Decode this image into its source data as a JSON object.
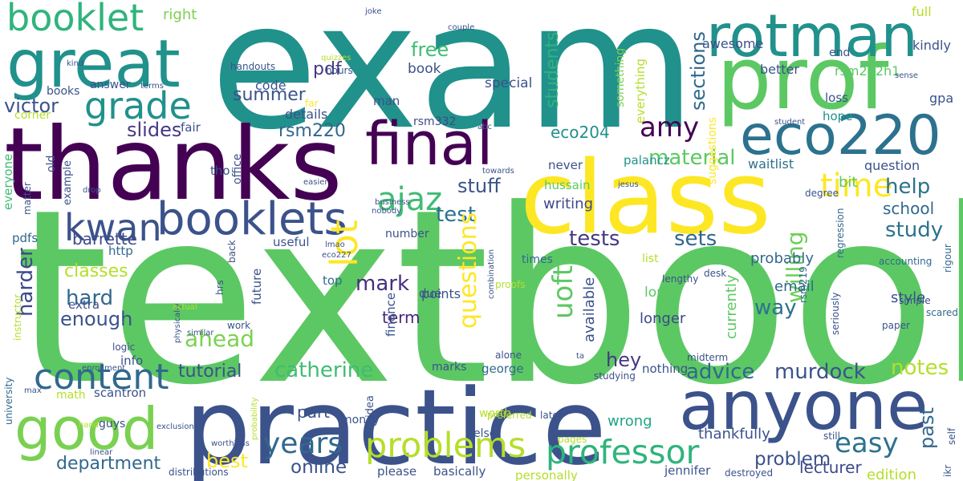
{
  "words": [
    {
      "text": "textbook",
      "color": "#5cc863"
    },
    {
      "text": "exam",
      "color": "#21918c"
    },
    {
      "text": "practice",
      "color": "#3b528b"
    },
    {
      "text": "thanks",
      "color": "#440154"
    },
    {
      "text": "class",
      "color": "#fde725"
    },
    {
      "text": "prof",
      "color": "#5cc863"
    },
    {
      "text": "great",
      "color": "#21918c"
    },
    {
      "text": "anyone",
      "color": "#3b528b"
    },
    {
      "text": "final",
      "color": "#440154"
    },
    {
      "text": "rotman",
      "color": "#21918c"
    },
    {
      "text": "eco220",
      "color": "#2c728e"
    },
    {
      "text": "good",
      "color": "#7ad151"
    },
    {
      "text": "booklets",
      "color": "#3b528b"
    },
    {
      "text": "booklet",
      "color": "#2fb47c"
    },
    {
      "text": "grade",
      "color": "#21918c"
    },
    {
      "text": "kwan",
      "color": "#3b528b"
    },
    {
      "text": "content",
      "color": "#31688e"
    },
    {
      "text": "problems",
      "color": "#b5de2b"
    },
    {
      "text": "professor",
      "color": "#2fb47c"
    },
    {
      "text": "years",
      "color": "#31688e"
    },
    {
      "text": "lot",
      "color": "#fde725"
    },
    {
      "text": "ajaz",
      "color": "#3fbc73"
    },
    {
      "text": "time",
      "color": "#fde725"
    },
    {
      "text": "amy",
      "color": "#440154"
    },
    {
      "text": "easy",
      "color": "#2c728e"
    },
    {
      "text": "catherine",
      "color": "#3fbc73"
    },
    {
      "text": "murdock",
      "color": "#3b528b"
    },
    {
      "text": "advice",
      "color": "#31688e"
    },
    {
      "text": "notes",
      "color": "#b5de2b"
    },
    {
      "text": "tests",
      "color": "#443983"
    },
    {
      "text": "test",
      "color": "#2c728e"
    },
    {
      "text": "sets",
      "color": "#31688e"
    },
    {
      "text": "help",
      "color": "#2c728e"
    },
    {
      "text": "study",
      "color": "#2c728e"
    },
    {
      "text": "questions",
      "color": "#fde725"
    },
    {
      "text": "uoft",
      "color": "#5cc863"
    },
    {
      "text": "willing",
      "color": "#6ece58"
    },
    {
      "text": "way",
      "color": "#2c728e"
    },
    {
      "text": "mark",
      "color": "#472f7d"
    },
    {
      "text": "hard",
      "color": "#31688e"
    },
    {
      "text": "enough",
      "color": "#3b528b"
    },
    {
      "text": "ahead",
      "color": "#7ad151"
    },
    {
      "text": "harder",
      "color": "#3e4989"
    },
    {
      "text": "department",
      "color": "#31688e"
    },
    {
      "text": "best",
      "color": "#fde725"
    },
    {
      "text": "online",
      "color": "#3b528b"
    },
    {
      "text": "problem",
      "color": "#3b528b"
    },
    {
      "text": "lecturer",
      "color": "#3e4989"
    },
    {
      "text": "past",
      "color": "#31688e"
    },
    {
      "text": "tutorial",
      "color": "#3b528b"
    },
    {
      "text": "hey",
      "color": "#443983"
    },
    {
      "text": "victor",
      "color": "#3b528b"
    },
    {
      "text": "slides",
      "color": "#443983"
    },
    {
      "text": "summer",
      "color": "#3b528b"
    },
    {
      "text": "rsm220",
      "color": "#31688e"
    },
    {
      "text": "eco204",
      "color": "#21918c"
    },
    {
      "text": "material",
      "color": "#5cc863"
    },
    {
      "text": "students",
      "color": "#2fb47c"
    },
    {
      "text": "sections",
      "color": "#31688e"
    },
    {
      "text": "free",
      "color": "#3fbc73"
    },
    {
      "text": "stuff",
      "color": "#3b528b"
    },
    {
      "text": "classes",
      "color": "#b5de2b"
    },
    {
      "text": "barrette",
      "color": "#3e4989"
    },
    {
      "text": "pdf",
      "color": "#443983"
    },
    {
      "text": "right",
      "color": "#7ad151"
    },
    {
      "text": "school",
      "color": "#31688e"
    },
    {
      "text": "probably",
      "color": "#31688e"
    },
    {
      "text": "thankfully",
      "color": "#3b528b"
    },
    {
      "text": "edition",
      "color": "#b5de2b"
    },
    {
      "text": "writing",
      "color": "#3e4989"
    },
    {
      "text": "part",
      "color": "#3b528b"
    },
    {
      "text": "term",
      "color": "#482677"
    },
    {
      "text": "wrong",
      "color": "#20a486"
    },
    {
      "text": "available",
      "color": "#3b528b"
    },
    {
      "text": "longer",
      "color": "#3e4989"
    },
    {
      "text": "currently",
      "color": "#5cc863"
    },
    {
      "text": "email",
      "color": "#31688e"
    },
    {
      "text": "style",
      "color": "#3b528b"
    },
    {
      "text": "waitlist",
      "color": "#2c728e"
    },
    {
      "text": "bit",
      "color": "#5cc863"
    },
    {
      "text": "question",
      "color": "#3b528b"
    },
    {
      "text": "awesome",
      "color": "#3b528b"
    },
    {
      "text": "full",
      "color": "#b5de2b"
    },
    {
      "text": "kindly",
      "color": "#3b528b"
    },
    {
      "text": "better",
      "color": "#3b528b"
    },
    {
      "text": "end",
      "color": "#3b528b"
    },
    {
      "text": "rsm222h1",
      "color": "#5cc863"
    },
    {
      "text": "gpa",
      "color": "#3b528b"
    },
    {
      "text": "loss",
      "color": "#3b528b"
    },
    {
      "text": "hope",
      "color": "#21918c"
    },
    {
      "text": "something",
      "color": "#7ad151"
    },
    {
      "text": "everything",
      "color": "#b5de2b"
    },
    {
      "text": "suggestions",
      "color": "#fde725"
    },
    {
      "text": "special",
      "color": "#3b528b"
    },
    {
      "text": "book",
      "color": "#3b528b"
    },
    {
      "text": "details",
      "color": "#3b528b"
    },
    {
      "text": "code",
      "color": "#3b528b"
    },
    {
      "text": "man",
      "color": "#3b528b"
    },
    {
      "text": "never",
      "color": "#3b528b"
    },
    {
      "text": "rsm332",
      "color": "#3e4989"
    },
    {
      "text": "hussain",
      "color": "#5cc863"
    },
    {
      "text": "palancz",
      "color": "#21918c"
    },
    {
      "text": "points",
      "color": "#3b528b"
    },
    {
      "text": "number",
      "color": "#3b528b"
    },
    {
      "text": "useful",
      "color": "#3b528b"
    },
    {
      "text": "times",
      "color": "#31688e"
    },
    {
      "text": "list",
      "color": "#b5de2b"
    },
    {
      "text": "long",
      "color": "#5cc863"
    },
    {
      "text": "nothing",
      "color": "#3b528b"
    },
    {
      "text": "george",
      "color": "#31688e"
    },
    {
      "text": "marks",
      "color": "#3b528b"
    },
    {
      "text": "finance",
      "color": "#3b528b"
    },
    {
      "text": "due",
      "color": "#3b528b"
    },
    {
      "text": "top",
      "color": "#31688e"
    },
    {
      "text": "future",
      "color": "#3b528b"
    },
    {
      "text": "office",
      "color": "#3b528b"
    },
    {
      "text": "info",
      "color": "#3b528b"
    },
    {
      "text": "extra",
      "color": "#3b528b"
    },
    {
      "text": "http",
      "color": "#31688e"
    },
    {
      "text": "pdfs",
      "color": "#31688e"
    },
    {
      "text": "everyone",
      "color": "#3fbc73"
    },
    {
      "text": "old",
      "color": "#3b528b"
    },
    {
      "text": "example",
      "color": "#3b528b"
    },
    {
      "text": "fair",
      "color": "#3b528b"
    },
    {
      "text": "tho",
      "color": "#3b528b"
    },
    {
      "text": "answer",
      "color": "#3b528b"
    },
    {
      "text": "books",
      "color": "#3b528b"
    },
    {
      "text": "handouts",
      "color": "#3b528b"
    },
    {
      "text": "hours",
      "color": "#3b528b"
    },
    {
      "text": "far",
      "color": "#fde725"
    },
    {
      "text": "corner",
      "color": "#b5de2b"
    },
    {
      "text": "scantron",
      "color": "#3b528b"
    },
    {
      "text": "math",
      "color": "#b5de2b"
    },
    {
      "text": "money",
      "color": "#3b528b"
    },
    {
      "text": "else",
      "color": "#3b528b"
    },
    {
      "text": "worth",
      "color": "#b5de2b"
    },
    {
      "text": "idea",
      "color": "#3b528b"
    },
    {
      "text": "basically",
      "color": "#3b528b"
    },
    {
      "text": "please",
      "color": "#3b528b"
    },
    {
      "text": "personally",
      "color": "#b5de2b"
    },
    {
      "text": "jennifer",
      "color": "#3b528b"
    },
    {
      "text": "guys",
      "color": "#3b528b"
    },
    {
      "text": "university",
      "color": "#31688e"
    },
    {
      "text": "work",
      "color": "#3b528b"
    },
    {
      "text": "logic",
      "color": "#3b528b"
    },
    {
      "text": "instructor",
      "color": "#b5de2b"
    },
    {
      "text": "hrs",
      "color": "#3b528b"
    },
    {
      "text": "back",
      "color": "#3b528b"
    },
    {
      "text": "matter",
      "color": "#3b528b"
    },
    {
      "text": "enrollment",
      "color": "#3b528b"
    },
    {
      "text": "proofs",
      "color": "#b5de2b"
    },
    {
      "text": "alone",
      "color": "#3b528b"
    },
    {
      "text": "studying",
      "color": "#3b528b"
    },
    {
      "text": "midterm",
      "color": "#3b528b"
    },
    {
      "text": "seriously",
      "color": "#3b528b"
    },
    {
      "text": "paper",
      "color": "#3b528b"
    },
    {
      "text": "simple",
      "color": "#3b528b"
    },
    {
      "text": "scared",
      "color": "#31688e"
    },
    {
      "text": "rigour",
      "color": "#31688e"
    },
    {
      "text": "self",
      "color": "#3b528b"
    },
    {
      "text": "ikr",
      "color": "#3b528b"
    },
    {
      "text": "degree",
      "color": "#3b528b"
    },
    {
      "text": "regression",
      "color": "#31688e"
    },
    {
      "text": "accounting",
      "color": "#31688e"
    },
    {
      "text": "still",
      "color": "#3b528b"
    },
    {
      "text": "lengthy",
      "color": "#3b528b"
    },
    {
      "text": "desk",
      "color": "#3b528b"
    },
    {
      "text": "rsm219",
      "color": "#31688e"
    },
    {
      "text": "pages",
      "color": "#b5de2b"
    },
    {
      "text": "preferred",
      "color": "#b5de2b"
    },
    {
      "text": "later",
      "color": "#3b528b"
    },
    {
      "text": "combination",
      "color": "#3b528b"
    },
    {
      "text": "distributions",
      "color": "#3b528b"
    },
    {
      "text": "destroyed",
      "color": "#3b528b"
    },
    {
      "text": "worthless",
      "color": "#3b528b"
    },
    {
      "text": "exclusion",
      "color": "#3b528b"
    },
    {
      "text": "linear",
      "color": "#3b528b"
    },
    {
      "text": "hand",
      "color": "#b5de2b"
    },
    {
      "text": "probability",
      "color": "#b5de2b"
    },
    {
      "text": "max",
      "color": "#3b528b"
    },
    {
      "text": "similar",
      "color": "#3b528b"
    },
    {
      "text": "physically",
      "color": "#3b528b"
    },
    {
      "text": "actual",
      "color": "#b5de2b"
    },
    {
      "text": "eco227",
      "color": "#3b528b"
    },
    {
      "text": "nobody",
      "color": "#3b528b"
    },
    {
      "text": "business",
      "color": "#3b528b"
    },
    {
      "text": "jesus",
      "color": "#3b528b"
    },
    {
      "text": "towards",
      "color": "#3b528b"
    },
    {
      "text": "easier",
      "color": "#3b528b"
    },
    {
      "text": "abc",
      "color": "#3b528b"
    },
    {
      "text": "lmao",
      "color": "#3b528b"
    },
    {
      "text": "drop",
      "color": "#3b528b"
    },
    {
      "text": "quizzes",
      "color": "#b5de2b"
    },
    {
      "text": "terms",
      "color": "#3b528b"
    },
    {
      "text": "kind",
      "color": "#3b528b"
    },
    {
      "text": "joke",
      "color": "#3b528b"
    },
    {
      "text": "couple",
      "color": "#3b528b"
    },
    {
      "text": "sense",
      "color": "#3b528b"
    },
    {
      "text": "student",
      "color": "#3b528b"
    },
    {
      "text": "ta",
      "color": "#3b528b"
    }
  ]
}
